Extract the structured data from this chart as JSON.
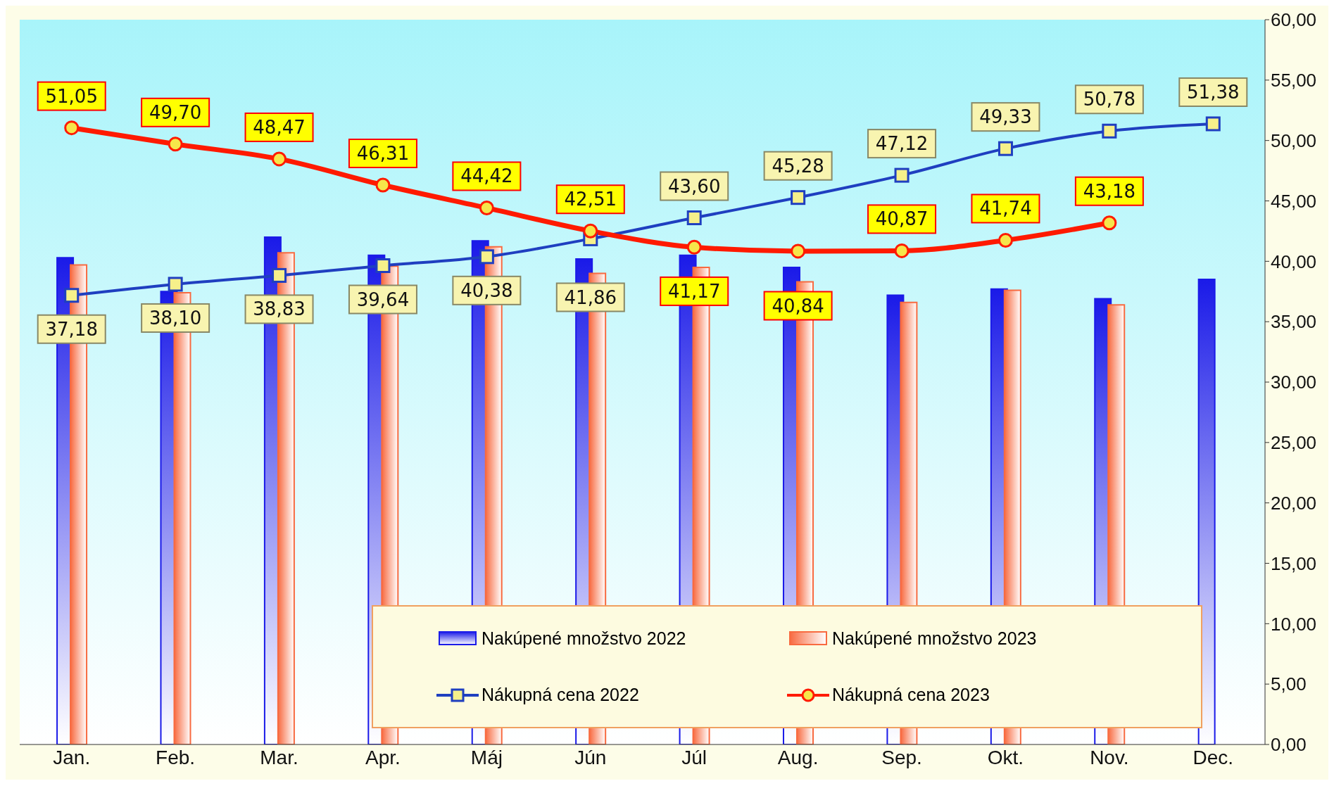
{
  "chart_data": {
    "type": "bar",
    "categories": [
      "Jan.",
      "Feb.",
      "Mar.",
      "Apr.",
      "Máj",
      "Jún",
      "Júl",
      "Aug.",
      "Sep.",
      "Okt.",
      "Nov.",
      "Dec."
    ],
    "series": [
      {
        "name": "Nakúpené množstvo 2022",
        "color": "#1a1ae8",
        "axis": "y2",
        "values": [
          40.3,
          37.5,
          42.0,
          40.5,
          41.7,
          40.2,
          40.5,
          39.5,
          37.2,
          37.7,
          36.9,
          38.5
        ]
      },
      {
        "name": "Nakúpené množstvo 2023",
        "color": "#f86a40",
        "axis": "y2",
        "values": [
          39.7,
          37.4,
          40.7,
          39.6,
          41.2,
          39.0,
          39.5,
          38.3,
          36.6,
          37.6,
          36.4,
          null
        ]
      },
      {
        "name": "Nákupná cena 2022",
        "type": "line",
        "axis": "y2",
        "marker": "square",
        "color": "#1f3fc0",
        "values": [
          37.18,
          38.1,
          38.83,
          39.64,
          40.38,
          41.86,
          43.6,
          45.28,
          47.12,
          49.33,
          50.78,
          51.38
        ],
        "value_labels": [
          "37,18",
          "38,10",
          "38,83",
          "39,64",
          "40,38",
          "41,86",
          "43,60",
          "45,28",
          "47,12",
          "49,33",
          "50,78",
          "51,38"
        ]
      },
      {
        "name": "Nákupná cena 2023",
        "type": "line",
        "axis": "y2",
        "marker": "circle",
        "color": "#ff1a00",
        "values": [
          51.05,
          49.7,
          48.47,
          46.31,
          44.42,
          42.51,
          41.17,
          40.84,
          40.87,
          41.74,
          43.18,
          null
        ],
        "value_labels": [
          "51,05",
          "49,70",
          "48,47",
          "46,31",
          "44,42",
          "42,51",
          "41,17",
          "40,84",
          "40,87",
          "41,74",
          "43,18",
          null
        ]
      }
    ],
    "y2lim": [
      0,
      60
    ],
    "y2ticks": [
      {
        "value": 0,
        "label": "0,00"
      },
      {
        "value": 5,
        "label": "5,00"
      },
      {
        "value": 10,
        "label": "10,00"
      },
      {
        "value": 15,
        "label": "15,00"
      },
      {
        "value": 20,
        "label": "20,00"
      },
      {
        "value": 25,
        "label": "25,00"
      },
      {
        "value": 30,
        "label": "30,00"
      },
      {
        "value": 35,
        "label": "35,00"
      },
      {
        "value": 40,
        "label": "40,00"
      },
      {
        "value": 45,
        "label": "45,00"
      },
      {
        "value": 50,
        "label": "50,00"
      },
      {
        "value": 55,
        "label": "55,00"
      },
      {
        "value": 60,
        "label": "60,00"
      }
    ],
    "legend": "bottom right",
    "grid": false
  }
}
